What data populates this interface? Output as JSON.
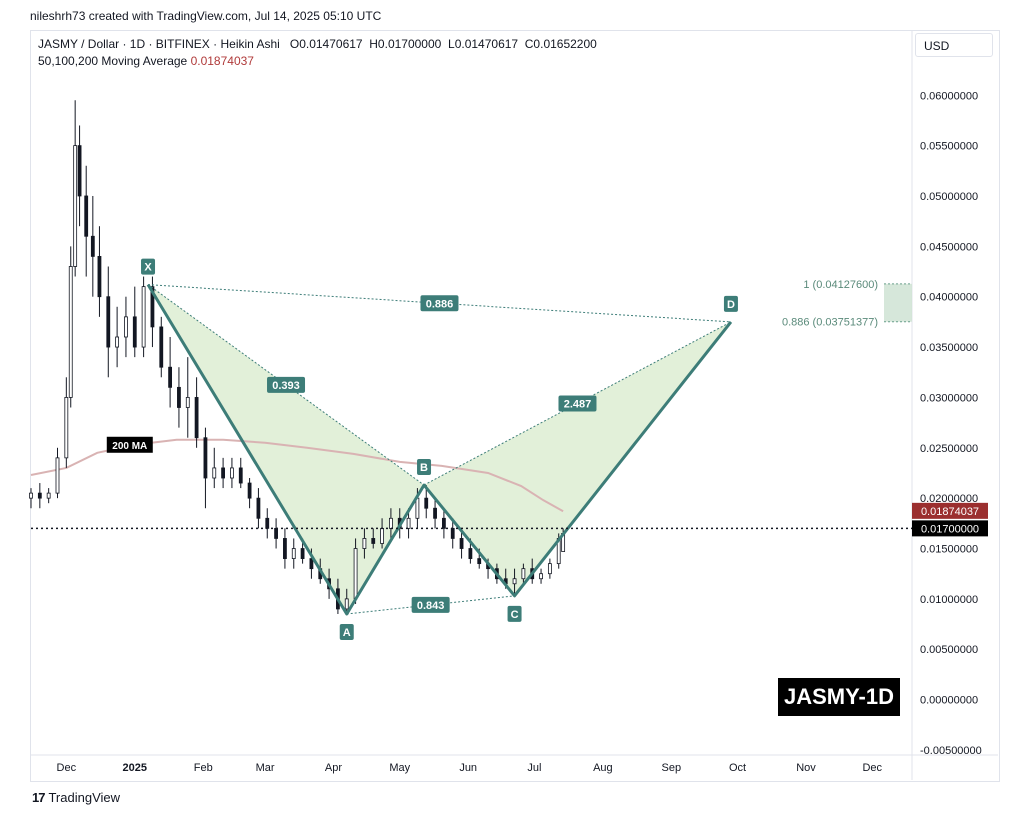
{
  "header": {
    "author_line": "nileshrh73 created with TradingView.com, Jul 14, 2025 05:10 UTC",
    "symbol_line": "JASMY / Dollar · 1D · BITFINEX · Heikin Ashi",
    "ohlc": {
      "o": "O0.01470617",
      "h": "H0.01700000",
      "l": "L0.01470617",
      "c": "C0.01652200"
    },
    "ma_label": "50,100,200 Moving Average",
    "ma_value": "0.01874037",
    "currency": "USD"
  },
  "footer": {
    "brand": "TradingView",
    "logo_glyph": "17"
  },
  "badge": "JASMY-1D",
  "colors": {
    "pattern_fill": "#d8ebcc",
    "pattern_line": "#3d7d78",
    "label_bg": "#3d7d78",
    "ma_line": "#d9b3b3",
    "ma_badge": "#9b2f2f",
    "price_badge": "#000000",
    "candle": "#131722"
  },
  "chart_data": {
    "type": "candlestick",
    "style": "Heikin Ashi",
    "y_axis": {
      "ticks": [
        "0.06000000",
        "0.05500000",
        "0.05000000",
        "0.04500000",
        "0.04000000",
        "0.03500000",
        "0.03000000",
        "0.02500000",
        "0.02000000",
        "0.01500000",
        "0.01000000",
        "0.00500000",
        "0.00000000",
        "-0.00500000"
      ],
      "tick_values": [
        0.06,
        0.055,
        0.05,
        0.045,
        0.04,
        0.035,
        0.03,
        0.025,
        0.02,
        0.015,
        0.01,
        0.005,
        0,
        -0.005
      ],
      "ylim": [
        -0.0055,
        0.0635
      ]
    },
    "x_axis": {
      "ticks": [
        "Dec",
        "2025",
        "Feb",
        "Mar",
        "Apr",
        "May",
        "Jun",
        "Jul",
        "Aug",
        "Sep",
        "Oct",
        "Nov",
        "Dec"
      ],
      "tick_dates": [
        "2024-12-01",
        "2025-01-01",
        "2025-02-01",
        "2025-03-01",
        "2025-04-01",
        "2025-05-01",
        "2025-06-01",
        "2025-07-01",
        "2025-08-01",
        "2025-09-01",
        "2025-10-01",
        "2025-11-01",
        "2025-12-01"
      ],
      "xlim": [
        "2024-11-15",
        "2025-12-19"
      ]
    },
    "pattern": {
      "points": [
        {
          "name": "X",
          "date": "2025-01-07",
          "value": 0.0412
        },
        {
          "name": "A",
          "date": "2025-04-07",
          "value": 0.0085
        },
        {
          "name": "B",
          "date": "2025-05-12",
          "value": 0.0213
        },
        {
          "name": "C",
          "date": "2025-06-22",
          "value": 0.0103
        },
        {
          "name": "D",
          "date": "2025-09-28",
          "value": 0.0375
        }
      ],
      "ratios": [
        {
          "label": "0.886",
          "between": [
            "X",
            "D"
          ]
        },
        {
          "label": "0.393",
          "between": [
            "X",
            "B"
          ]
        },
        {
          "label": "0.843",
          "between": [
            "A",
            "C"
          ]
        },
        {
          "label": "2.487",
          "between": [
            "B",
            "D"
          ]
        }
      ]
    },
    "fib_levels": [
      {
        "ratio": "1",
        "value": 0.041276,
        "label": "1 (0.04127600)"
      },
      {
        "ratio": "0.886",
        "value": 0.03751377,
        "label": "0.886 (0.03751377)"
      }
    ],
    "ma": {
      "label": "200 MA",
      "points": [
        [
          "2024-11-15",
          0.0223
        ],
        [
          "2024-12-01",
          0.023
        ],
        [
          "2024-12-15",
          0.0245
        ],
        [
          "2025-01-01",
          0.0253
        ],
        [
          "2025-01-20",
          0.0258
        ],
        [
          "2025-02-10",
          0.0258
        ],
        [
          "2025-03-01",
          0.0255
        ],
        [
          "2025-03-20",
          0.025
        ],
        [
          "2025-04-10",
          0.0244
        ],
        [
          "2025-05-01",
          0.0236
        ],
        [
          "2025-05-20",
          0.0232
        ],
        [
          "2025-06-10",
          0.0225
        ],
        [
          "2025-06-25",
          0.0212
        ],
        [
          "2025-07-05",
          0.0198
        ],
        [
          "2025-07-14",
          0.0187
        ]
      ]
    },
    "price_line": {
      "value": 0.017,
      "label": "0.01700000"
    },
    "ma_marker": {
      "value": 0.01874037,
      "label": "0.01874037"
    },
    "candles": [
      [
        "2024-11-15",
        0.02,
        0.021,
        0.019,
        0.0205
      ],
      [
        "2024-11-19",
        0.0205,
        0.0215,
        0.019,
        0.02
      ],
      [
        "2024-11-23",
        0.02,
        0.021,
        0.0195,
        0.0205
      ],
      [
        "2024-11-27",
        0.0205,
        0.025,
        0.02,
        0.024
      ],
      [
        "2024-12-01",
        0.024,
        0.032,
        0.023,
        0.03
      ],
      [
        "2024-12-03",
        0.03,
        0.045,
        0.029,
        0.043
      ],
      [
        "2024-12-05",
        0.043,
        0.0595,
        0.042,
        0.055
      ],
      [
        "2024-12-07",
        0.055,
        0.057,
        0.047,
        0.05
      ],
      [
        "2024-12-10",
        0.05,
        0.053,
        0.042,
        0.046
      ],
      [
        "2024-12-13",
        0.046,
        0.05,
        0.04,
        0.044
      ],
      [
        "2024-12-16",
        0.044,
        0.047,
        0.038,
        0.04
      ],
      [
        "2024-12-20",
        0.04,
        0.043,
        0.032,
        0.035
      ],
      [
        "2024-12-24",
        0.035,
        0.039,
        0.033,
        0.036
      ],
      [
        "2024-12-28",
        0.036,
        0.04,
        0.034,
        0.038
      ],
      [
        "2025-01-01",
        0.038,
        0.041,
        0.034,
        0.035
      ],
      [
        "2025-01-05",
        0.035,
        0.042,
        0.034,
        0.041
      ],
      [
        "2025-01-09",
        0.041,
        0.042,
        0.035,
        0.037
      ],
      [
        "2025-01-13",
        0.037,
        0.038,
        0.032,
        0.033
      ],
      [
        "2025-01-17",
        0.033,
        0.036,
        0.029,
        0.031
      ],
      [
        "2025-01-21",
        0.031,
        0.033,
        0.027,
        0.029
      ],
      [
        "2025-01-25",
        0.029,
        0.034,
        0.026,
        0.03
      ],
      [
        "2025-01-29",
        0.03,
        0.032,
        0.025,
        0.026
      ],
      [
        "2025-02-02",
        0.026,
        0.027,
        0.019,
        0.022
      ],
      [
        "2025-02-06",
        0.022,
        0.025,
        0.021,
        0.023
      ],
      [
        "2025-02-10",
        0.023,
        0.024,
        0.021,
        0.022
      ],
      [
        "2025-02-14",
        0.022,
        0.024,
        0.021,
        0.023
      ],
      [
        "2025-02-18",
        0.023,
        0.024,
        0.021,
        0.0215
      ],
      [
        "2025-02-22",
        0.0215,
        0.022,
        0.019,
        0.02
      ],
      [
        "2025-02-26",
        0.02,
        0.021,
        0.017,
        0.018
      ],
      [
        "2025-03-02",
        0.018,
        0.019,
        0.016,
        0.017
      ],
      [
        "2025-03-06",
        0.017,
        0.018,
        0.015,
        0.016
      ],
      [
        "2025-03-10",
        0.016,
        0.017,
        0.013,
        0.014
      ],
      [
        "2025-03-14",
        0.014,
        0.016,
        0.013,
        0.015
      ],
      [
        "2025-03-18",
        0.015,
        0.016,
        0.0135,
        0.014
      ],
      [
        "2025-03-22",
        0.014,
        0.015,
        0.012,
        0.013
      ],
      [
        "2025-03-26",
        0.013,
        0.014,
        0.0115,
        0.012
      ],
      [
        "2025-03-30",
        0.012,
        0.013,
        0.01,
        0.011
      ],
      [
        "2025-04-03",
        0.011,
        0.012,
        0.0085,
        0.009
      ],
      [
        "2025-04-07",
        0.009,
        0.011,
        0.0085,
        0.01
      ],
      [
        "2025-04-11",
        0.01,
        0.016,
        0.0095,
        0.015
      ],
      [
        "2025-04-15",
        0.015,
        0.017,
        0.014,
        0.016
      ],
      [
        "2025-04-19",
        0.016,
        0.017,
        0.015,
        0.0155
      ],
      [
        "2025-04-23",
        0.0155,
        0.018,
        0.015,
        0.017
      ],
      [
        "2025-04-27",
        0.017,
        0.019,
        0.016,
        0.018
      ],
      [
        "2025-05-01",
        0.018,
        0.019,
        0.016,
        0.017
      ],
      [
        "2025-05-05",
        0.017,
        0.019,
        0.016,
        0.018
      ],
      [
        "2025-05-09",
        0.018,
        0.021,
        0.017,
        0.02
      ],
      [
        "2025-05-13",
        0.02,
        0.0213,
        0.018,
        0.019
      ],
      [
        "2025-05-17",
        0.019,
        0.02,
        0.017,
        0.018
      ],
      [
        "2025-05-21",
        0.018,
        0.019,
        0.016,
        0.017
      ],
      [
        "2025-05-25",
        0.017,
        0.018,
        0.015,
        0.016
      ],
      [
        "2025-05-29",
        0.016,
        0.017,
        0.014,
        0.015
      ],
      [
        "2025-06-02",
        0.015,
        0.016,
        0.0135,
        0.014
      ],
      [
        "2025-06-06",
        0.014,
        0.015,
        0.013,
        0.0135
      ],
      [
        "2025-06-10",
        0.0135,
        0.014,
        0.012,
        0.013
      ],
      [
        "2025-06-14",
        0.013,
        0.0135,
        0.0115,
        0.012
      ],
      [
        "2025-06-18",
        0.012,
        0.013,
        0.011,
        0.0115
      ],
      [
        "2025-06-22",
        0.0115,
        0.013,
        0.0103,
        0.012
      ],
      [
        "2025-06-26",
        0.012,
        0.0135,
        0.0115,
        0.013
      ],
      [
        "2025-06-30",
        0.013,
        0.014,
        0.0115,
        0.012
      ],
      [
        "2025-07-04",
        0.012,
        0.013,
        0.0115,
        0.0125
      ],
      [
        "2025-07-08",
        0.0125,
        0.014,
        0.012,
        0.0135
      ],
      [
        "2025-07-12",
        0.0135,
        0.0165,
        0.013,
        0.016
      ],
      [
        "2025-07-14",
        0.0147,
        0.017,
        0.0147,
        0.0165
      ]
    ]
  }
}
